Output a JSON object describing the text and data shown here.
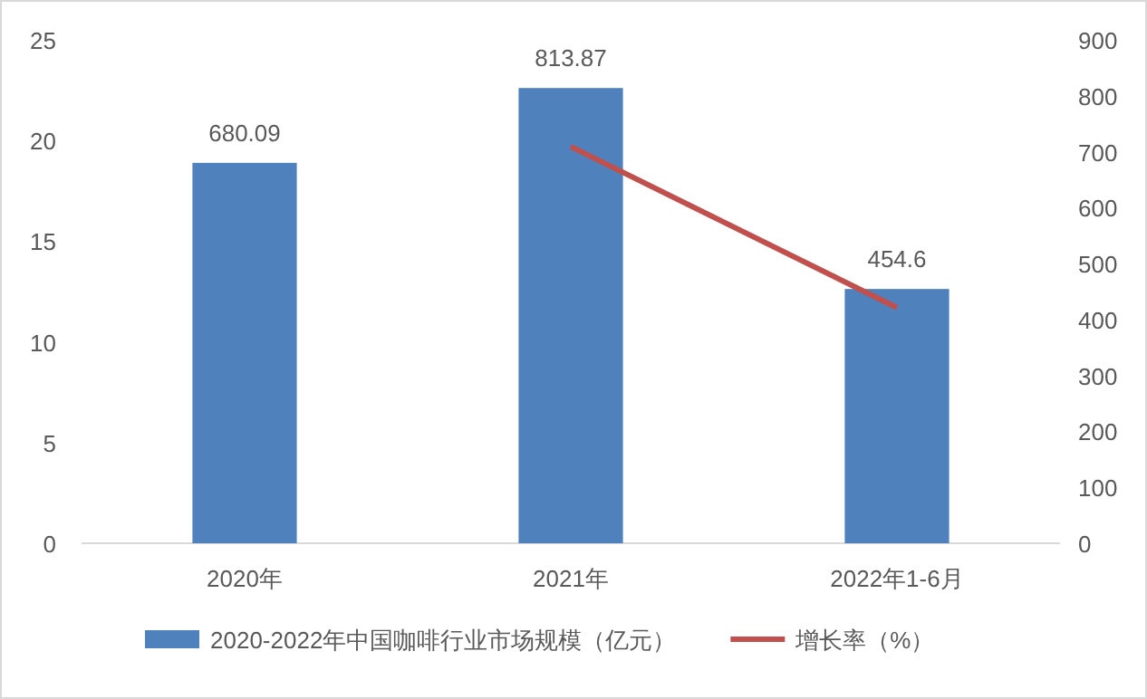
{
  "chart_data": {
    "type": "bar",
    "categories": [
      "2020年",
      "2021年",
      "2022年1-6月"
    ],
    "series": [
      {
        "name": "2020-2022年中国咖啡行业市场规模（亿元）",
        "axis": "y2",
        "color": "#4f81bd",
        "values": [
          680.09,
          813.87,
          454.6
        ],
        "value_labels": [
          "680.09",
          "813.87",
          "454.6"
        ]
      },
      {
        "name": "增长率（%）",
        "type": "line",
        "axis": "y",
        "color": "#c0504d",
        "values": [
          null,
          19.7,
          11.7
        ]
      }
    ],
    "ylim": [
      0,
      25
    ],
    "yticks": [
      0,
      5,
      10,
      15,
      20,
      25
    ],
    "y2lim": [
      0,
      900
    ],
    "y2ticks": [
      0,
      100,
      200,
      300,
      400,
      500,
      600,
      700,
      800,
      900
    ],
    "grid": false,
    "legend": "bottom",
    "marker": "none",
    "line_style": "solid"
  }
}
